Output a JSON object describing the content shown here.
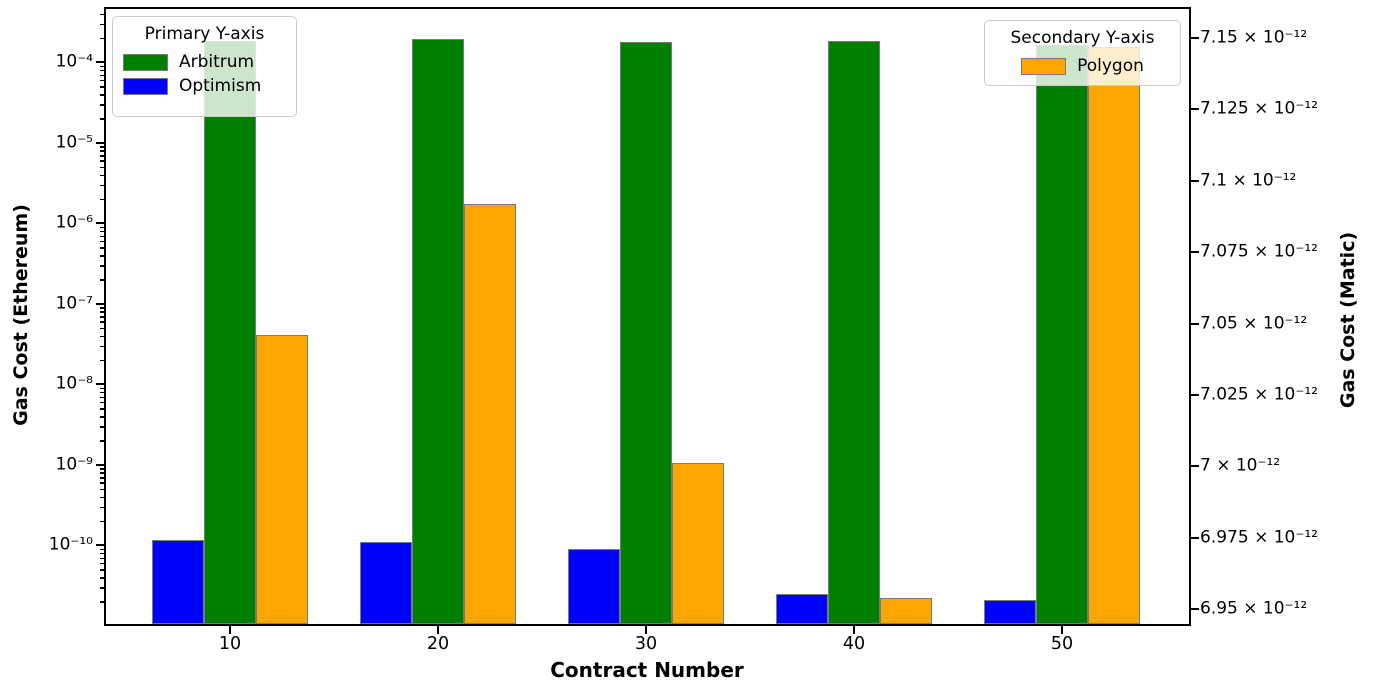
{
  "labels": {
    "x": "Contract Number",
    "left": "Gas Cost (Ethereum)",
    "right": "Gas Cost (Matic)"
  },
  "legends": {
    "primary": {
      "title": "Primary Y-axis",
      "entries": [
        {
          "label": "Arbitrum",
          "color": "#008000"
        },
        {
          "label": "Optimism",
          "color": "#0000ff"
        }
      ]
    },
    "secondary": {
      "title": "Secondary Y-axis",
      "entries": [
        {
          "label": "Polygon",
          "color": "#ffa500"
        }
      ]
    }
  },
  "chart_data": {
    "type": "bar",
    "title": "",
    "xlabel": "Contract Number",
    "ylabel_primary": "Gas Cost (Ethereum)",
    "ylabel_secondary": "Gas Cost (Matic)",
    "categories": [
      10,
      20,
      30,
      40,
      50
    ],
    "group_order": [
      "Optimism",
      "Arbitrum",
      "Polygon"
    ],
    "series": [
      {
        "name": "Arbitrum",
        "axis": "primary",
        "color": "#008000",
        "values": [
          0.000182,
          0.000192,
          0.000179,
          0.000184,
          0.000165
        ]
      },
      {
        "name": "Optimism",
        "axis": "primary",
        "color": "#0000ff",
        "values": [
          1.15e-10,
          1.1e-10,
          9e-11,
          2.5e-11,
          2.1e-11
        ]
      },
      {
        "name": "Polygon",
        "axis": "secondary",
        "color": "#ffa500",
        "values": [
          7.046e-12,
          7.092e-12,
          7.001e-12,
          6.954e-12,
          7.147e-12
        ]
      }
    ],
    "axes": {
      "primary": {
        "scale": "log",
        "ylim": [
          1e-11,
          0.00046
        ],
        "ticks": [
          {
            "value": 0.0001,
            "label": "10⁻⁴"
          },
          {
            "value": 1e-05,
            "label": "10⁻⁵"
          },
          {
            "value": 1e-06,
            "label": "10⁻⁶"
          },
          {
            "value": 1e-07,
            "label": "10⁻⁷"
          },
          {
            "value": 1e-08,
            "label": "10⁻⁸"
          },
          {
            "value": 1e-09,
            "label": "10⁻⁹"
          },
          {
            "value": 1e-10,
            "label": "10⁻¹⁰"
          }
        ]
      },
      "secondary": {
        "scale": "linear",
        "ylim": [
          6.945e-12,
          7.16e-12
        ],
        "ticks": [
          {
            "value": 7.15e-12,
            "label": "7.15 × 10⁻¹²"
          },
          {
            "value": 7.125e-12,
            "label": "7.125 × 10⁻¹²"
          },
          {
            "value": 7.1e-12,
            "label": "7.1 × 10⁻¹²"
          },
          {
            "value": 7.075e-12,
            "label": "7.075 × 10⁻¹²"
          },
          {
            "value": 7.05e-12,
            "label": "7.05 × 10⁻¹²"
          },
          {
            "value": 7.025e-12,
            "label": "7.025 × 10⁻¹²"
          },
          {
            "value": 7e-12,
            "label": "7 × 10⁻¹²"
          },
          {
            "value": 6.975e-12,
            "label": "6.975 × 10⁻¹²"
          },
          {
            "value": 6.95e-12,
            "label": "6.95 × 10⁻¹²"
          }
        ]
      },
      "x": {
        "xlim": [
          4,
          56
        ],
        "ticks": [
          {
            "value": 10,
            "label": "10"
          },
          {
            "value": 20,
            "label": "20"
          },
          {
            "value": 30,
            "label": "30"
          },
          {
            "value": 40,
            "label": "40"
          },
          {
            "value": 50,
            "label": "50"
          }
        ]
      }
    },
    "grid": false,
    "bar_edge_color": "#7a7a7a",
    "legend_positions": {
      "primary": "upper left",
      "secondary": "upper right"
    }
  }
}
